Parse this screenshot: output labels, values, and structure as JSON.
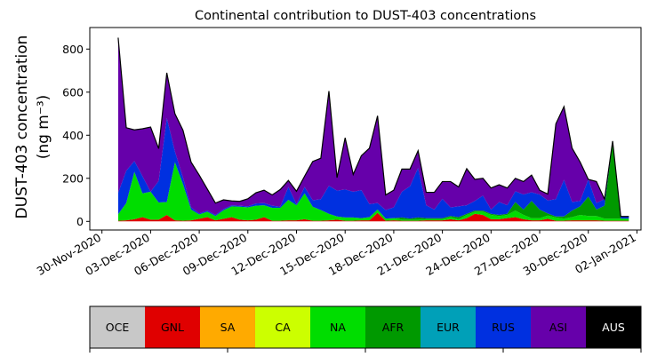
{
  "chart_data": {
    "type": "area",
    "stacked": true,
    "title": "Continental contribution to DUST-403 concentrations",
    "ylabel_line1": "DUST-403 concentration",
    "ylabel_line2": "(ng m⁻³)",
    "xlabel": "",
    "ylim": [
      -40,
      900
    ],
    "yticks": [
      0,
      200,
      400,
      600,
      800
    ],
    "xlim": [
      "2020-11-29T06:00",
      "2021-01-02T06:00"
    ],
    "xtick_labels": [
      "30-Nov-2020",
      "03-Dec-2020",
      "06-Dec-2020",
      "09-Dec-2020",
      "12-Dec-2020",
      "15-Dec-2020",
      "18-Dec-2020",
      "21-Dec-2020",
      "24-Dec-2020",
      "27-Dec-2020",
      "30-Dec-2020",
      "02-Jan-2021"
    ],
    "xtick_dates": [
      "2020-11-30",
      "2020-12-03",
      "2020-12-06",
      "2020-12-09",
      "2020-12-12",
      "2020-12-15",
      "2020-12-18",
      "2020-12-21",
      "2020-12-24",
      "2020-12-27",
      "2020-12-30",
      "2021-01-02"
    ],
    "x": [
      "2020-12-01T00:00",
      "2020-12-01T12:00",
      "2020-12-02T00:00",
      "2020-12-02T12:00",
      "2020-12-03T00:00",
      "2020-12-03T12:00",
      "2020-12-04T00:00",
      "2020-12-04T12:00",
      "2020-12-05T00:00",
      "2020-12-05T12:00",
      "2020-12-06T00:00",
      "2020-12-06T12:00",
      "2020-12-07T00:00",
      "2020-12-07T12:00",
      "2020-12-08T00:00",
      "2020-12-08T12:00",
      "2020-12-09T00:00",
      "2020-12-09T12:00",
      "2020-12-10T00:00",
      "2020-12-10T12:00",
      "2020-12-11T00:00",
      "2020-12-11T12:00",
      "2020-12-12T00:00",
      "2020-12-12T12:00",
      "2020-12-13T00:00",
      "2020-12-13T12:00",
      "2020-12-14T00:00",
      "2020-12-14T12:00",
      "2020-12-15T00:00",
      "2020-12-15T12:00",
      "2020-12-16T00:00",
      "2020-12-16T12:00",
      "2020-12-17T00:00",
      "2020-12-17T12:00",
      "2020-12-18T00:00",
      "2020-12-18T12:00",
      "2020-12-19T00:00",
      "2020-12-19T12:00",
      "2020-12-20T00:00",
      "2020-12-20T12:00",
      "2020-12-21T00:00",
      "2020-12-21T12:00",
      "2020-12-22T00:00",
      "2020-12-22T12:00",
      "2020-12-23T00:00",
      "2020-12-23T12:00",
      "2020-12-24T00:00",
      "2020-12-24T12:00",
      "2020-12-25T00:00",
      "2020-12-25T12:00",
      "2020-12-26T00:00",
      "2020-12-26T12:00",
      "2020-12-27T00:00",
      "2020-12-27T12:00",
      "2020-12-28T00:00",
      "2020-12-28T12:00",
      "2020-12-29T00:00",
      "2020-12-29T12:00",
      "2020-12-30T00:00",
      "2020-12-30T12:00",
      "2020-12-31T00:00",
      "2020-12-31T12:00",
      "2021-01-01T00:00",
      "2021-01-01T12:00"
    ],
    "series": [
      {
        "name": "OCE",
        "color": "#c8c8c8",
        "values": [
          0,
          0,
          0,
          0,
          0,
          0,
          0,
          0,
          0,
          0,
          0,
          0,
          0,
          0,
          0,
          0,
          0,
          0,
          0,
          0,
          0,
          0,
          0,
          0,
          0,
          0,
          0,
          0,
          0,
          0,
          0,
          0,
          0,
          0,
          0,
          0,
          0,
          0,
          0,
          0,
          0,
          0,
          0,
          0,
          0,
          0,
          0,
          0,
          0,
          0,
          0,
          0,
          0,
          0,
          0,
          0,
          0,
          0,
          0,
          0,
          0,
          0,
          0,
          0
        ]
      },
      {
        "name": "GNL",
        "color": "#e00000",
        "values": [
          3,
          5,
          10,
          20,
          8,
          8,
          30,
          5,
          3,
          5,
          12,
          20,
          5,
          12,
          20,
          8,
          5,
          8,
          20,
          3,
          3,
          5,
          5,
          10,
          3,
          3,
          5,
          8,
          3,
          3,
          5,
          5,
          40,
          3,
          5,
          3,
          3,
          3,
          5,
          5,
          5,
          10,
          5,
          15,
          35,
          30,
          10,
          10,
          15,
          20,
          10,
          5,
          5,
          12,
          3,
          3,
          5,
          5,
          5,
          5,
          3,
          3,
          3,
          3
        ]
      },
      {
        "name": "SA",
        "color": "#ffaa00",
        "values": [
          0,
          0,
          0,
          0,
          0,
          0,
          0,
          0,
          0,
          0,
          0,
          0,
          0,
          0,
          0,
          0,
          0,
          0,
          0,
          0,
          0,
          0,
          0,
          0,
          0,
          0,
          0,
          0,
          0,
          0,
          0,
          0,
          0,
          0,
          0,
          0,
          0,
          0,
          0,
          0,
          0,
          0,
          0,
          0,
          0,
          0,
          0,
          0,
          0,
          0,
          0,
          0,
          0,
          0,
          0,
          0,
          0,
          0,
          0,
          0,
          0,
          0,
          0,
          0
        ]
      },
      {
        "name": "CA",
        "color": "#ccff00",
        "values": [
          0,
          0,
          0,
          0,
          0,
          0,
          0,
          0,
          0,
          0,
          0,
          0,
          0,
          0,
          0,
          0,
          0,
          0,
          0,
          0,
          0,
          0,
          0,
          0,
          0,
          0,
          0,
          0,
          0,
          0,
          0,
          0,
          0,
          0,
          0,
          0,
          0,
          0,
          0,
          0,
          0,
          0,
          0,
          0,
          0,
          0,
          0,
          0,
          0,
          0,
          0,
          0,
          0,
          0,
          0,
          0,
          0,
          0,
          0,
          0,
          0,
          0,
          0,
          0
        ]
      },
      {
        "name": "NA",
        "color": "#00dd00",
        "values": [
          30,
          80,
          220,
          110,
          130,
          80,
          60,
          270,
          170,
          50,
          20,
          25,
          20,
          40,
          50,
          60,
          60,
          65,
          55,
          60,
          60,
          95,
          70,
          120,
          65,
          50,
          30,
          15,
          15,
          15,
          10,
          15,
          15,
          10,
          10,
          5,
          5,
          5,
          5,
          5,
          5,
          10,
          5,
          15,
          10,
          15,
          20,
          15,
          15,
          30,
          20,
          10,
          10,
          15,
          15,
          10,
          15,
          25,
          20,
          20,
          10,
          10,
          10,
          10
        ]
      },
      {
        "name": "AFR",
        "color": "#009900",
        "values": [
          0,
          0,
          0,
          0,
          0,
          0,
          0,
          0,
          0,
          0,
          0,
          0,
          0,
          0,
          0,
          0,
          0,
          0,
          0,
          0,
          0,
          0,
          0,
          0,
          0,
          0,
          0,
          0,
          0,
          0,
          0,
          0,
          0,
          0,
          0,
          10,
          5,
          10,
          5,
          5,
          5,
          5,
          10,
          5,
          5,
          5,
          5,
          5,
          5,
          40,
          25,
          80,
          40,
          10,
          5,
          10,
          30,
          40,
          90,
          30,
          60,
          350,
          0,
          0
        ]
      },
      {
        "name": "EUR",
        "color": "#00a0b8",
        "values": [
          0,
          0,
          0,
          0,
          0,
          0,
          0,
          0,
          0,
          0,
          0,
          0,
          0,
          0,
          0,
          0,
          0,
          0,
          0,
          0,
          0,
          0,
          0,
          0,
          0,
          0,
          0,
          0,
          0,
          0,
          0,
          0,
          0,
          0,
          0,
          0,
          0,
          0,
          0,
          0,
          0,
          0,
          0,
          0,
          0,
          0,
          0,
          0,
          0,
          0,
          0,
          0,
          0,
          0,
          0,
          0,
          0,
          0,
          0,
          0,
          0,
          0,
          0,
          0
        ]
      },
      {
        "name": "RUS",
        "color": "#0030e0",
        "values": [
          100,
          150,
          50,
          80,
          0,
          100,
          390,
          50,
          30,
          10,
          5,
          5,
          5,
          5,
          5,
          5,
          5,
          10,
          10,
          10,
          5,
          60,
          5,
          30,
          30,
          50,
          130,
          120,
          130,
          120,
          130,
          60,
          30,
          40,
          50,
          120,
          150,
          230,
          60,
          40,
          90,
          40,
          50,
          40,
          45,
          70,
          20,
          60,
          40,
          50,
          70,
          40,
          70,
          60,
          80,
          170,
          40,
          25,
          80,
          30,
          30,
          10,
          10,
          10
        ]
      },
      {
        "name": "ASI",
        "color": "#6600aa",
        "values": [
          720,
          200,
          145,
          220,
          300,
          150,
          210,
          175,
          220,
          210,
          178,
          100,
          55,
          43,
          20,
          20,
          35,
          50,
          60,
          50,
          80,
          30,
          60,
          50,
          180,
          190,
          440,
          60,
          240,
          80,
          160,
          260,
          405,
          70,
          80,
          105,
          80,
          80,
          60,
          80,
          80,
          120,
          90,
          170,
          100,
          80,
          100,
          80,
          80,
          60,
          60,
          80,
          20,
          30,
          350,
          340,
          250,
          180,
          0,
          100,
          0,
          0,
          0,
          0
        ]
      },
      {
        "name": "AUS",
        "color": "#000000",
        "values": [
          0,
          0,
          0,
          0,
          0,
          0,
          0,
          0,
          0,
          0,
          0,
          0,
          0,
          0,
          0,
          0,
          0,
          0,
          0,
          0,
          0,
          0,
          0,
          0,
          0,
          0,
          0,
          0,
          0,
          0,
          0,
          0,
          0,
          0,
          0,
          0,
          0,
          0,
          0,
          0,
          0,
          0,
          0,
          0,
          0,
          0,
          0,
          0,
          0,
          0,
          0,
          0,
          0,
          0,
          0,
          0,
          0,
          0,
          0,
          0,
          0,
          0,
          0,
          0
        ]
      }
    ],
    "legend": {
      "placement": "bottom",
      "labels": [
        "OCE",
        "GNL",
        "SA",
        "CA",
        "NA",
        "AFR",
        "EUR",
        "RUS",
        "ASI",
        "AUS"
      ],
      "text_colors": [
        "#000000",
        "#000000",
        "#000000",
        "#000000",
        "#000000",
        "#000000",
        "#000000",
        "#000000",
        "#000000",
        "#ffffff"
      ]
    },
    "grid": false
  }
}
